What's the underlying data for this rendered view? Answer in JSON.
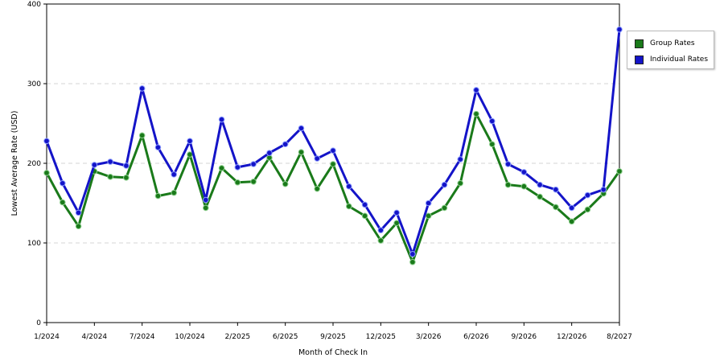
{
  "chart_data": {
    "type": "line",
    "xlabel": "Month of Check In",
    "ylabel": "Lowest Average Rate (USD)",
    "ylim": [
      0,
      400
    ],
    "yticks": [
      "0",
      "100",
      "200",
      "300",
      "400"
    ],
    "xtick_labels": [
      "1/2024",
      "4/2024",
      "7/2024",
      "10/2024",
      "2/2025",
      "6/2025",
      "9/2025",
      "12/2025",
      "3/2026",
      "6/2026",
      "9/2026",
      "12/2026",
      "8/2027"
    ],
    "grid": "horizontal dashed",
    "legend_position": "right",
    "series": [
      {
        "name": "Group Rates",
        "color": "#1a7a1a",
        "values": [
          188,
          151,
          121,
          190,
          183,
          182,
          235,
          159,
          163,
          211,
          144,
          194,
          176,
          177,
          207,
          174,
          214,
          168,
          199,
          146,
          134,
          103,
          125,
          76,
          134,
          144,
          175,
          262,
          224,
          173,
          171,
          158,
          145,
          127,
          142,
          162,
          190
        ]
      },
      {
        "name": "Individual Rates",
        "color": "#1414c8",
        "values": [
          228,
          175,
          138,
          198,
          202,
          197,
          294,
          220,
          186,
          228,
          154,
          255,
          195,
          199,
          213,
          224,
          244,
          206,
          216,
          171,
          148,
          116,
          138,
          86,
          150,
          173,
          205,
          292,
          253,
          199,
          189,
          173,
          167,
          144,
          160,
          167,
          368
        ]
      }
    ]
  }
}
